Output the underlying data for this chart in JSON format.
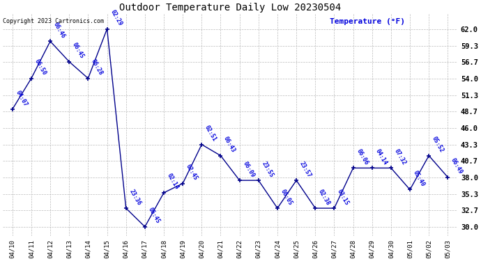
{
  "title": "Outdoor Temperature Daily Low 20230504",
  "ylabel_text": "Temperature (°F)",
  "background_color": "#ffffff",
  "line_color": "#00008b",
  "annotation_color": "#0000dd",
  "copyright_text": "Copyright 2023 Cartronics.com",
  "dates": [
    "04/10",
    "04/11",
    "04/12",
    "04/13",
    "04/14",
    "04/15",
    "04/16",
    "04/17",
    "04/18",
    "04/19",
    "04/20",
    "04/21",
    "04/22",
    "04/23",
    "04/24",
    "04/25",
    "04/26",
    "04/27",
    "04/28",
    "04/29",
    "04/30",
    "05/01",
    "05/02",
    "05/03"
  ],
  "temperatures": [
    49.0,
    54.0,
    60.0,
    56.7,
    54.0,
    62.0,
    33.0,
    30.0,
    35.5,
    37.0,
    43.3,
    41.5,
    37.5,
    37.5,
    33.0,
    37.5,
    33.0,
    33.0,
    39.5,
    39.5,
    39.5,
    36.0,
    41.5,
    38.0
  ],
  "annotations": [
    "04:07",
    "06:50",
    "06:46",
    "06:45",
    "06:28",
    "02:29",
    "23:36",
    "06:45",
    "02:14",
    "02:45",
    "02:51",
    "06:43",
    "06:09",
    "23:55",
    "06:05",
    "23:57",
    "02:38",
    "03:15",
    "06:06",
    "04:14",
    "07:32",
    "05:40",
    "05:52",
    "06:49"
  ],
  "yticks": [
    30.0,
    32.7,
    35.3,
    38.0,
    40.7,
    43.3,
    46.0,
    48.7,
    51.3,
    54.0,
    56.7,
    59.3,
    62.0
  ],
  "ytick_labels": [
    "30.0",
    "32.7",
    "35.3",
    "38.0",
    "40.7",
    "43.3",
    "46.0",
    "48.7",
    "51.3",
    "54.0",
    "56.7",
    "59.3",
    "62.0"
  ],
  "figwidth": 6.9,
  "figheight": 3.75,
  "dpi": 100
}
